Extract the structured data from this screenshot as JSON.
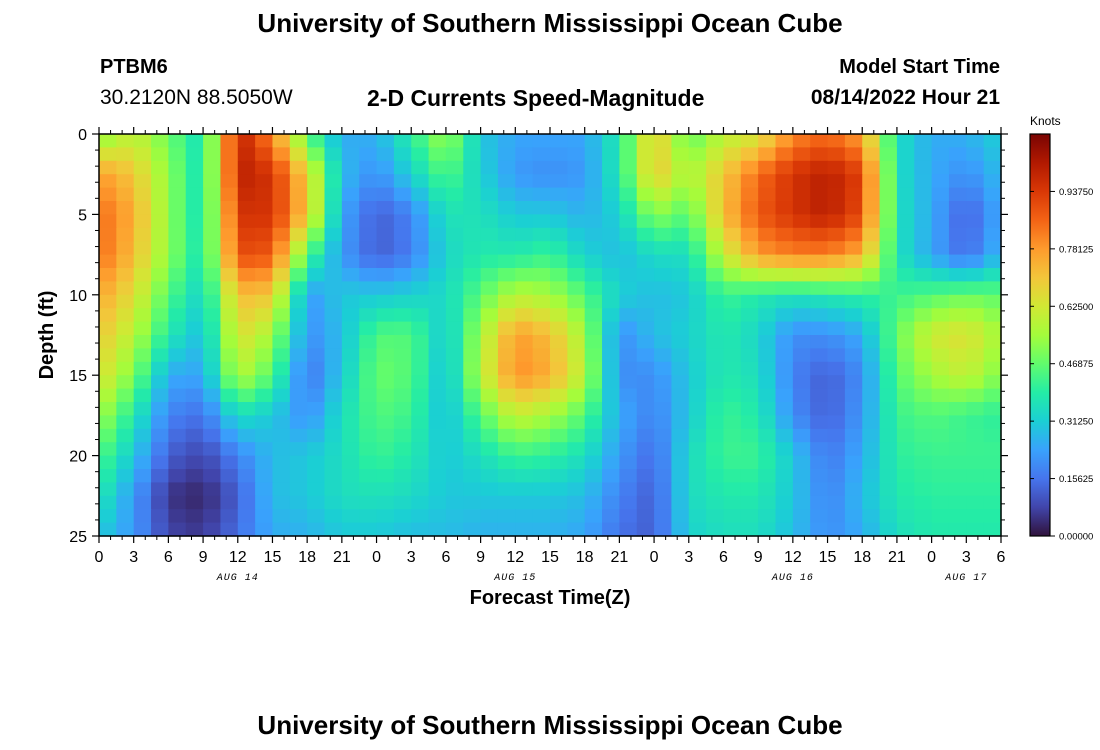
{
  "page": {
    "title": "University of Southern Mississippi Ocean Cube",
    "footer_title": "University of Southern Mississippi Ocean Cube",
    "station_id": "PTBM6",
    "coordinates": "30.2120N  88.5050W",
    "subtitle": "2-D Currents Speed-Magnitude",
    "model_start_label": "Model Start Time",
    "model_start_value": "08/14/2022 Hour 21"
  },
  "colors": {
    "scale": [
      "#30123b",
      "#4145ab",
      "#4675ed",
      "#39a2fc",
      "#1bcfd4",
      "#24eca6",
      "#61fc6c",
      "#a4fc3b",
      "#d1e834",
      "#f3c63a",
      "#fe9b2d",
      "#f36315",
      "#d93806",
      "#b11901",
      "#7a0402"
    ]
  },
  "chart_data": {
    "type": "heatmap",
    "title": "2-D Currents Speed-Magnitude",
    "xlabel": "Forecast Time(Z)",
    "ylabel": "Depth (ft)",
    "x_range_hours": [
      0,
      78
    ],
    "ylim": [
      0,
      25
    ],
    "y_ticks": [
      0,
      5,
      10,
      15,
      20,
      25
    ],
    "x_ticks": [
      {
        "hour": 0,
        "label": "0"
      },
      {
        "hour": 3,
        "label": "3"
      },
      {
        "hour": 6,
        "label": "6"
      },
      {
        "hour": 9,
        "label": "9"
      },
      {
        "hour": 12,
        "label": "12"
      },
      {
        "hour": 15,
        "label": "15"
      },
      {
        "hour": 18,
        "label": "18"
      },
      {
        "hour": 21,
        "label": "21"
      },
      {
        "hour": 24,
        "label": "0"
      },
      {
        "hour": 27,
        "label": "3"
      },
      {
        "hour": 30,
        "label": "6"
      },
      {
        "hour": 33,
        "label": "9"
      },
      {
        "hour": 36,
        "label": "12"
      },
      {
        "hour": 39,
        "label": "15"
      },
      {
        "hour": 42,
        "label": "18"
      },
      {
        "hour": 45,
        "label": "21"
      },
      {
        "hour": 48,
        "label": "0"
      },
      {
        "hour": 51,
        "label": "3"
      },
      {
        "hour": 54,
        "label": "6"
      },
      {
        "hour": 57,
        "label": "9"
      },
      {
        "hour": 60,
        "label": "12"
      },
      {
        "hour": 63,
        "label": "15"
      },
      {
        "hour": 66,
        "label": "18"
      },
      {
        "hour": 69,
        "label": "21"
      },
      {
        "hour": 72,
        "label": "0"
      },
      {
        "hour": 75,
        "label": "3"
      },
      {
        "hour": 78,
        "label": "6"
      }
    ],
    "date_labels": [
      {
        "hour": 12,
        "label": "AUG 14"
      },
      {
        "hour": 36,
        "label": "AUG 15"
      },
      {
        "hour": 60,
        "label": "AUG 16"
      },
      {
        "hour": 75,
        "label": "AUG 17"
      }
    ],
    "colorbar": {
      "unit": "Knots",
      "min": 0.0,
      "max": 1.09375,
      "ticks": [
        "0.00000",
        "0.15625",
        "0.31250",
        "0.46875",
        "0.62500",
        "0.78125",
        "0.93750"
      ]
    },
    "grid_hours": [
      0,
      3,
      6,
      9,
      12,
      15,
      18,
      21,
      24,
      27,
      30,
      33,
      36,
      39,
      42,
      45,
      48,
      51,
      54,
      57,
      60,
      63,
      66,
      69,
      72,
      75,
      78
    ],
    "grid_depths": [
      0,
      2.5,
      5,
      7.5,
      10,
      12.5,
      15,
      17.5,
      20,
      22.5,
      25
    ],
    "speed_grid": [
      [
        0.5,
        0.6,
        0.48,
        0.35,
        1.0,
        0.8,
        0.45,
        0.25,
        0.26,
        0.4,
        0.55,
        0.3,
        0.24,
        0.24,
        0.24,
        0.38,
        0.7,
        0.46,
        0.58,
        0.62,
        0.8,
        0.85,
        0.76,
        0.35,
        0.25,
        0.26,
        0.32
      ],
      [
        0.78,
        0.7,
        0.52,
        0.35,
        1.0,
        0.95,
        0.68,
        0.28,
        0.2,
        0.32,
        0.45,
        0.32,
        0.22,
        0.2,
        0.22,
        0.38,
        0.7,
        0.55,
        0.7,
        0.85,
        0.95,
        1.0,
        0.92,
        0.35,
        0.25,
        0.2,
        0.28
      ],
      [
        0.85,
        0.75,
        0.52,
        0.35,
        0.95,
        0.95,
        0.7,
        0.24,
        0.12,
        0.18,
        0.36,
        0.36,
        0.3,
        0.3,
        0.26,
        0.32,
        0.52,
        0.45,
        0.72,
        0.88,
        0.95,
        1.0,
        0.9,
        0.36,
        0.25,
        0.12,
        0.25
      ],
      [
        0.85,
        0.72,
        0.52,
        0.36,
        0.9,
        0.88,
        0.45,
        0.22,
        0.12,
        0.17,
        0.33,
        0.38,
        0.38,
        0.42,
        0.32,
        0.28,
        0.34,
        0.35,
        0.6,
        0.78,
        0.82,
        0.82,
        0.75,
        0.36,
        0.24,
        0.14,
        0.28
      ],
      [
        0.76,
        0.65,
        0.45,
        0.32,
        0.72,
        0.7,
        0.22,
        0.3,
        0.3,
        0.32,
        0.34,
        0.46,
        0.58,
        0.55,
        0.45,
        0.32,
        0.28,
        0.3,
        0.42,
        0.38,
        0.36,
        0.38,
        0.4,
        0.42,
        0.45,
        0.48,
        0.46
      ],
      [
        0.7,
        0.58,
        0.38,
        0.28,
        0.65,
        0.55,
        0.2,
        0.28,
        0.45,
        0.45,
        0.3,
        0.55,
        0.78,
        0.72,
        0.55,
        0.2,
        0.28,
        0.32,
        0.38,
        0.33,
        0.2,
        0.2,
        0.25,
        0.48,
        0.62,
        0.65,
        0.55
      ],
      [
        0.65,
        0.5,
        0.25,
        0.24,
        0.58,
        0.45,
        0.15,
        0.3,
        0.48,
        0.45,
        0.28,
        0.58,
        0.8,
        0.75,
        0.58,
        0.2,
        0.2,
        0.3,
        0.38,
        0.35,
        0.18,
        0.12,
        0.2,
        0.45,
        0.55,
        0.6,
        0.5
      ],
      [
        0.55,
        0.38,
        0.18,
        0.15,
        0.35,
        0.3,
        0.2,
        0.35,
        0.45,
        0.42,
        0.28,
        0.45,
        0.6,
        0.55,
        0.45,
        0.25,
        0.18,
        0.3,
        0.42,
        0.38,
        0.2,
        0.12,
        0.22,
        0.42,
        0.45,
        0.42,
        0.4
      ],
      [
        0.45,
        0.3,
        0.12,
        0.08,
        0.18,
        0.28,
        0.3,
        0.35,
        0.42,
        0.38,
        0.3,
        0.35,
        0.42,
        0.4,
        0.35,
        0.22,
        0.14,
        0.34,
        0.42,
        0.42,
        0.3,
        0.16,
        0.25,
        0.4,
        0.42,
        0.42,
        0.42
      ],
      [
        0.38,
        0.22,
        0.05,
        0.03,
        0.12,
        0.28,
        0.3,
        0.35,
        0.36,
        0.34,
        0.3,
        0.3,
        0.3,
        0.3,
        0.28,
        0.18,
        0.12,
        0.34,
        0.38,
        0.38,
        0.3,
        0.18,
        0.28,
        0.38,
        0.4,
        0.4,
        0.4
      ],
      [
        0.3,
        0.22,
        0.08,
        0.06,
        0.15,
        0.25,
        0.26,
        0.3,
        0.3,
        0.28,
        0.28,
        0.26,
        0.26,
        0.26,
        0.24,
        0.15,
        0.12,
        0.32,
        0.35,
        0.35,
        0.28,
        0.2,
        0.25,
        0.35,
        0.38,
        0.38,
        0.38
      ]
    ]
  }
}
